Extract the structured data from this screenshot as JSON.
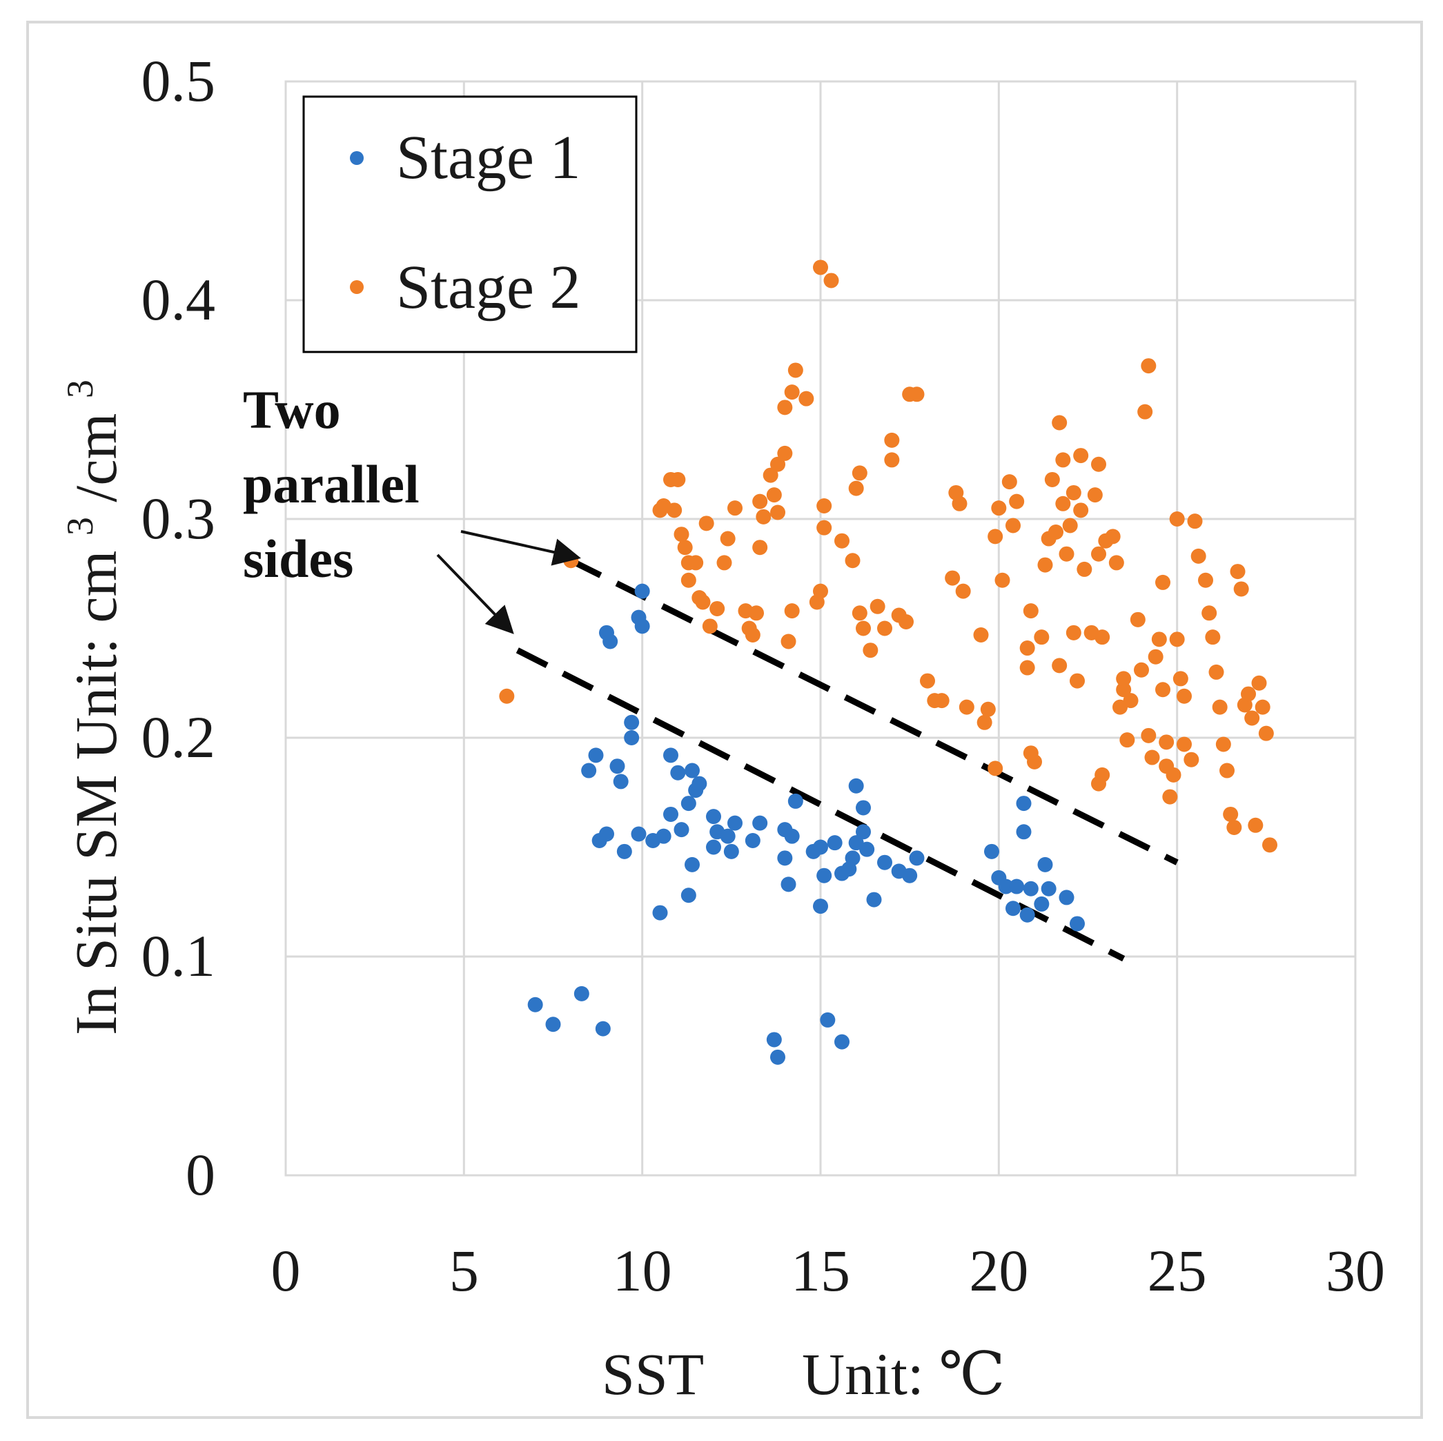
{
  "chart_data": {
    "type": "scatter",
    "title": "",
    "xlabel_left": "SST",
    "xlabel_right": "Unit: ℃",
    "ylabel": "In Situ SM",
    "ylabel_unit_prefix": "Unit: cm",
    "ylabel_unit_sup": "3",
    "ylabel_unit_mid": "/cm",
    "ylabel_unit_sup2": "3",
    "xlim": [
      0,
      30
    ],
    "ylim": [
      0,
      0.5
    ],
    "xticks": [
      0,
      5,
      10,
      15,
      20,
      25,
      30
    ],
    "xtick_labels": [
      "0",
      "5",
      "10",
      "15",
      "20",
      "25",
      "30"
    ],
    "yticks": [
      0,
      0.1,
      0.2,
      0.3,
      0.4,
      0.5
    ],
    "ytick_labels": [
      "0",
      "0.1",
      "0.2",
      "0.3",
      "0.4",
      "0.5"
    ],
    "grid": true,
    "legend_position": "top-left",
    "series": [
      {
        "name": "Stage 1",
        "color": "#2e75c6",
        "points": [
          [
            7.0,
            0.078
          ],
          [
            7.5,
            0.069
          ],
          [
            8.3,
            0.083
          ],
          [
            8.9,
            0.067
          ],
          [
            8.5,
            0.185
          ],
          [
            8.7,
            0.192
          ],
          [
            8.8,
            0.153
          ],
          [
            9.0,
            0.156
          ],
          [
            9.0,
            0.248
          ],
          [
            9.1,
            0.244
          ],
          [
            9.3,
            0.187
          ],
          [
            9.4,
            0.18
          ],
          [
            9.5,
            0.148
          ],
          [
            9.7,
            0.207
          ],
          [
            9.7,
            0.2
          ],
          [
            9.9,
            0.255
          ],
          [
            10.0,
            0.267
          ],
          [
            10.0,
            0.251
          ],
          [
            9.9,
            0.156
          ],
          [
            10.3,
            0.153
          ],
          [
            10.5,
            0.12
          ],
          [
            10.6,
            0.155
          ],
          [
            10.8,
            0.165
          ],
          [
            10.8,
            0.192
          ],
          [
            11.0,
            0.184
          ],
          [
            11.1,
            0.158
          ],
          [
            11.3,
            0.128
          ],
          [
            11.4,
            0.142
          ],
          [
            11.3,
            0.17
          ],
          [
            11.4,
            0.185
          ],
          [
            11.5,
            0.176
          ],
          [
            11.6,
            0.179
          ],
          [
            12.0,
            0.164
          ],
          [
            12.0,
            0.15
          ],
          [
            12.1,
            0.157
          ],
          [
            12.4,
            0.155
          ],
          [
            12.5,
            0.148
          ],
          [
            12.6,
            0.161
          ],
          [
            13.1,
            0.153
          ],
          [
            13.3,
            0.161
          ],
          [
            13.7,
            0.062
          ],
          [
            13.8,
            0.054
          ],
          [
            14.0,
            0.145
          ],
          [
            14.0,
            0.158
          ],
          [
            14.1,
            0.133
          ],
          [
            14.2,
            0.155
          ],
          [
            14.3,
            0.171
          ],
          [
            14.8,
            0.148
          ],
          [
            15.0,
            0.123
          ],
          [
            15.0,
            0.15
          ],
          [
            15.1,
            0.137
          ],
          [
            15.2,
            0.071
          ],
          [
            15.4,
            0.152
          ],
          [
            15.6,
            0.061
          ],
          [
            15.6,
            0.138
          ],
          [
            15.8,
            0.14
          ],
          [
            15.9,
            0.145
          ],
          [
            16.0,
            0.152
          ],
          [
            16.0,
            0.178
          ],
          [
            16.2,
            0.168
          ],
          [
            16.3,
            0.149
          ],
          [
            16.2,
            0.157
          ],
          [
            16.5,
            0.126
          ],
          [
            16.8,
            0.143
          ],
          [
            17.2,
            0.139
          ],
          [
            17.5,
            0.137
          ],
          [
            17.7,
            0.145
          ],
          [
            19.8,
            0.148
          ],
          [
            20.0,
            0.136
          ],
          [
            20.2,
            0.132
          ],
          [
            20.4,
            0.122
          ],
          [
            20.5,
            0.132
          ],
          [
            20.7,
            0.157
          ],
          [
            20.7,
            0.17
          ],
          [
            20.8,
            0.119
          ],
          [
            20.9,
            0.131
          ],
          [
            21.2,
            0.124
          ],
          [
            21.3,
            0.142
          ],
          [
            21.4,
            0.131
          ],
          [
            21.9,
            0.127
          ],
          [
            22.2,
            0.115
          ]
        ]
      },
      {
        "name": "Stage 2",
        "color": "#f07e26",
        "points": [
          [
            6.2,
            0.219
          ],
          [
            8.0,
            0.281
          ],
          [
            10.5,
            0.304
          ],
          [
            10.6,
            0.306
          ],
          [
            10.8,
            0.318
          ],
          [
            10.9,
            0.304
          ],
          [
            11.0,
            0.318
          ],
          [
            11.1,
            0.293
          ],
          [
            11.2,
            0.287
          ],
          [
            11.3,
            0.28
          ],
          [
            11.3,
            0.272
          ],
          [
            11.5,
            0.28
          ],
          [
            11.6,
            0.264
          ],
          [
            11.7,
            0.262
          ],
          [
            11.8,
            0.298
          ],
          [
            11.9,
            0.251
          ],
          [
            12.1,
            0.259
          ],
          [
            12.3,
            0.28
          ],
          [
            12.4,
            0.291
          ],
          [
            12.6,
            0.305
          ],
          [
            12.9,
            0.258
          ],
          [
            13.0,
            0.25
          ],
          [
            13.1,
            0.247
          ],
          [
            13.2,
            0.257
          ],
          [
            13.3,
            0.308
          ],
          [
            13.3,
            0.287
          ],
          [
            13.4,
            0.301
          ],
          [
            13.6,
            0.32
          ],
          [
            13.7,
            0.311
          ],
          [
            13.8,
            0.303
          ],
          [
            13.8,
            0.325
          ],
          [
            14.0,
            0.33
          ],
          [
            14.0,
            0.351
          ],
          [
            14.2,
            0.358
          ],
          [
            14.3,
            0.368
          ],
          [
            14.1,
            0.244
          ],
          [
            14.2,
            0.258
          ],
          [
            14.6,
            0.355
          ],
          [
            14.9,
            0.262
          ],
          [
            15.0,
            0.415
          ],
          [
            15.0,
            0.267
          ],
          [
            15.1,
            0.306
          ],
          [
            15.1,
            0.296
          ],
          [
            15.3,
            0.409
          ],
          [
            15.6,
            0.29
          ],
          [
            15.9,
            0.281
          ],
          [
            16.0,
            0.314
          ],
          [
            16.1,
            0.321
          ],
          [
            16.1,
            0.257
          ],
          [
            16.2,
            0.25
          ],
          [
            16.4,
            0.24
          ],
          [
            16.6,
            0.26
          ],
          [
            16.8,
            0.25
          ],
          [
            17.0,
            0.336
          ],
          [
            17.0,
            0.327
          ],
          [
            17.2,
            0.256
          ],
          [
            17.4,
            0.253
          ],
          [
            17.5,
            0.357
          ],
          [
            17.7,
            0.357
          ],
          [
            18.0,
            0.226
          ],
          [
            18.2,
            0.217
          ],
          [
            18.4,
            0.217
          ],
          [
            18.7,
            0.273
          ],
          [
            18.8,
            0.312
          ],
          [
            18.9,
            0.307
          ],
          [
            19.0,
            0.267
          ],
          [
            19.1,
            0.214
          ],
          [
            19.5,
            0.247
          ],
          [
            19.6,
            0.207
          ],
          [
            19.7,
            0.213
          ],
          [
            19.9,
            0.186
          ],
          [
            19.9,
            0.292
          ],
          [
            20.0,
            0.305
          ],
          [
            20.1,
            0.272
          ],
          [
            20.3,
            0.317
          ],
          [
            20.4,
            0.297
          ],
          [
            20.5,
            0.308
          ],
          [
            20.8,
            0.232
          ],
          [
            20.8,
            0.241
          ],
          [
            20.9,
            0.258
          ],
          [
            20.9,
            0.193
          ],
          [
            21.0,
            0.189
          ],
          [
            21.2,
            0.246
          ],
          [
            21.3,
            0.279
          ],
          [
            21.4,
            0.291
          ],
          [
            21.5,
            0.318
          ],
          [
            21.6,
            0.294
          ],
          [
            21.7,
            0.233
          ],
          [
            21.7,
            0.344
          ],
          [
            21.8,
            0.327
          ],
          [
            21.8,
            0.307
          ],
          [
            21.9,
            0.284
          ],
          [
            22.0,
            0.297
          ],
          [
            22.1,
            0.312
          ],
          [
            22.2,
            0.226
          ],
          [
            22.1,
            0.248
          ],
          [
            22.3,
            0.329
          ],
          [
            22.3,
            0.304
          ],
          [
            22.4,
            0.277
          ],
          [
            22.6,
            0.248
          ],
          [
            22.7,
            0.311
          ],
          [
            22.8,
            0.325
          ],
          [
            22.8,
            0.284
          ],
          [
            22.9,
            0.246
          ],
          [
            22.8,
            0.179
          ],
          [
            22.9,
            0.183
          ],
          [
            23.0,
            0.29
          ],
          [
            23.2,
            0.292
          ],
          [
            23.3,
            0.28
          ],
          [
            23.4,
            0.214
          ],
          [
            23.5,
            0.222
          ],
          [
            23.5,
            0.227
          ],
          [
            23.6,
            0.199
          ],
          [
            23.7,
            0.217
          ],
          [
            23.9,
            0.254
          ],
          [
            24.0,
            0.231
          ],
          [
            24.1,
            0.349
          ],
          [
            24.2,
            0.37
          ],
          [
            24.2,
            0.201
          ],
          [
            24.3,
            0.191
          ],
          [
            24.4,
            0.237
          ],
          [
            24.5,
            0.245
          ],
          [
            24.6,
            0.271
          ],
          [
            24.6,
            0.222
          ],
          [
            24.7,
            0.198
          ],
          [
            24.7,
            0.187
          ],
          [
            24.8,
            0.173
          ],
          [
            24.9,
            0.183
          ],
          [
            25.0,
            0.3
          ],
          [
            25.0,
            0.245
          ],
          [
            25.1,
            0.227
          ],
          [
            25.2,
            0.219
          ],
          [
            25.2,
            0.197
          ],
          [
            25.4,
            0.19
          ],
          [
            25.5,
            0.299
          ],
          [
            25.6,
            0.283
          ],
          [
            25.8,
            0.272
          ],
          [
            25.9,
            0.257
          ],
          [
            26.0,
            0.246
          ],
          [
            26.1,
            0.23
          ],
          [
            26.2,
            0.214
          ],
          [
            26.3,
            0.197
          ],
          [
            26.4,
            0.185
          ],
          [
            26.5,
            0.165
          ],
          [
            26.6,
            0.159
          ],
          [
            26.7,
            0.276
          ],
          [
            26.8,
            0.268
          ],
          [
            26.9,
            0.215
          ],
          [
            27.0,
            0.22
          ],
          [
            27.1,
            0.209
          ],
          [
            27.2,
            0.16
          ],
          [
            27.3,
            0.225
          ],
          [
            27.4,
            0.214
          ],
          [
            27.5,
            0.202
          ],
          [
            27.6,
            0.151
          ]
        ]
      }
    ],
    "reference_lines": [
      {
        "style": "dashed",
        "color": "#000000",
        "x": [
          8.0,
          25.0
        ],
        "y": [
          0.281,
          0.143
        ]
      },
      {
        "style": "dashed",
        "color": "#000000",
        "x": [
          6.5,
          23.5
        ],
        "y": [
          0.24,
          0.099
        ]
      }
    ],
    "annotation": {
      "lines": [
        "Two",
        "parallel",
        "sides"
      ],
      "arrow_targets": [
        [
          8.0,
          0.281
        ],
        [
          6.3,
          0.245
        ]
      ]
    }
  }
}
